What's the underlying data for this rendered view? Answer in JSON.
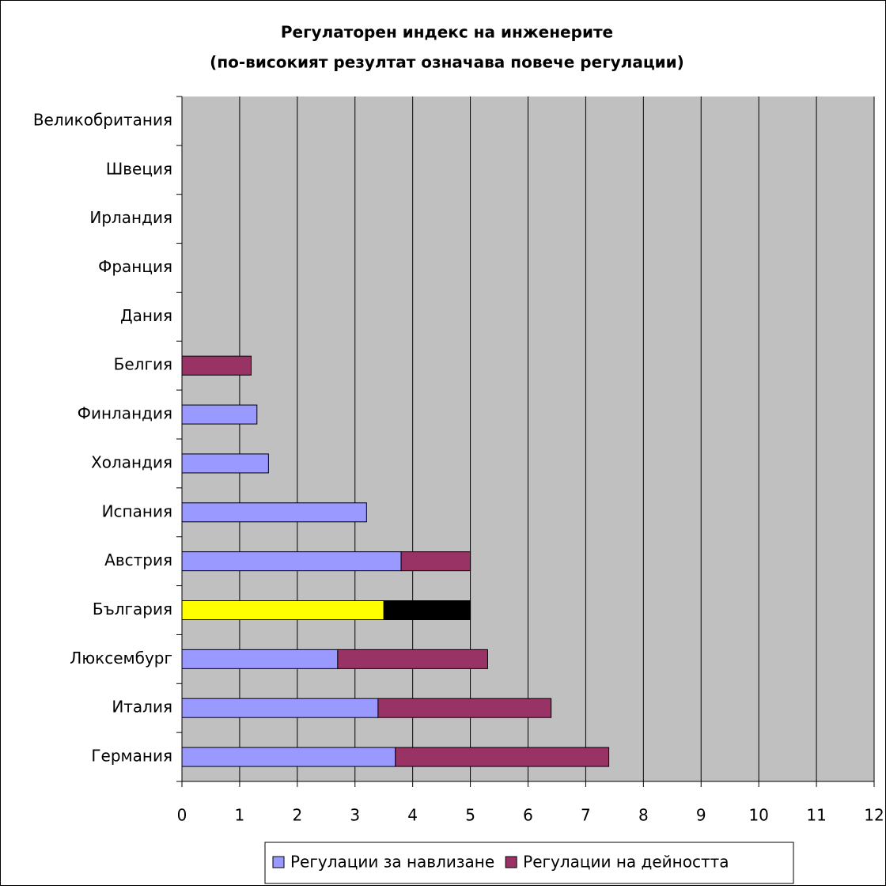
{
  "chart_data": {
    "type": "stacked_barh",
    "title": [
      "Регулаторен индекс на инженерите",
      "(по-високият резултат означава повече регулации)"
    ],
    "categories": [
      "Великобритания",
      "Швеция",
      "Ирландия",
      "Франция",
      "Дания",
      "Белгия",
      "Финландия",
      "Холандия",
      "Испания",
      "Австрия",
      "България",
      "Люксембург",
      "Италия",
      "Германия"
    ],
    "series": [
      {
        "name": "Регулации за навлизане",
        "color": "#9999ff",
        "colors": [
          "#9999ff",
          "#9999ff",
          "#9999ff",
          "#9999ff",
          "#9999ff",
          "#9999ff",
          "#9999ff",
          "#9999ff",
          "#9999ff",
          "#9999ff",
          "#ffff00",
          "#9999ff",
          "#9999ff",
          "#9999ff"
        ],
        "values": [
          0,
          0,
          0,
          0,
          0,
          0,
          1.3,
          1.5,
          3.2,
          3.8,
          3.5,
          2.7,
          3.4,
          3.7
        ]
      },
      {
        "name": "Регулации на дейността",
        "color": "#993366",
        "colors": [
          "#993366",
          "#993366",
          "#993366",
          "#993366",
          "#993366",
          "#993366",
          "#993366",
          "#993366",
          "#993366",
          "#993366",
          "#000000",
          "#993366",
          "#993366",
          "#993366"
        ],
        "values": [
          0,
          0,
          0,
          0,
          0,
          1.2,
          0,
          0,
          0,
          1.2,
          1.5,
          2.6,
          3.0,
          3.7
        ]
      }
    ],
    "xlim": [
      0,
      12
    ],
    "xticks": [
      0,
      1,
      2,
      3,
      4,
      5,
      6,
      7,
      8,
      9,
      10,
      11,
      12
    ],
    "grid": true,
    "legend": "bottom"
  }
}
